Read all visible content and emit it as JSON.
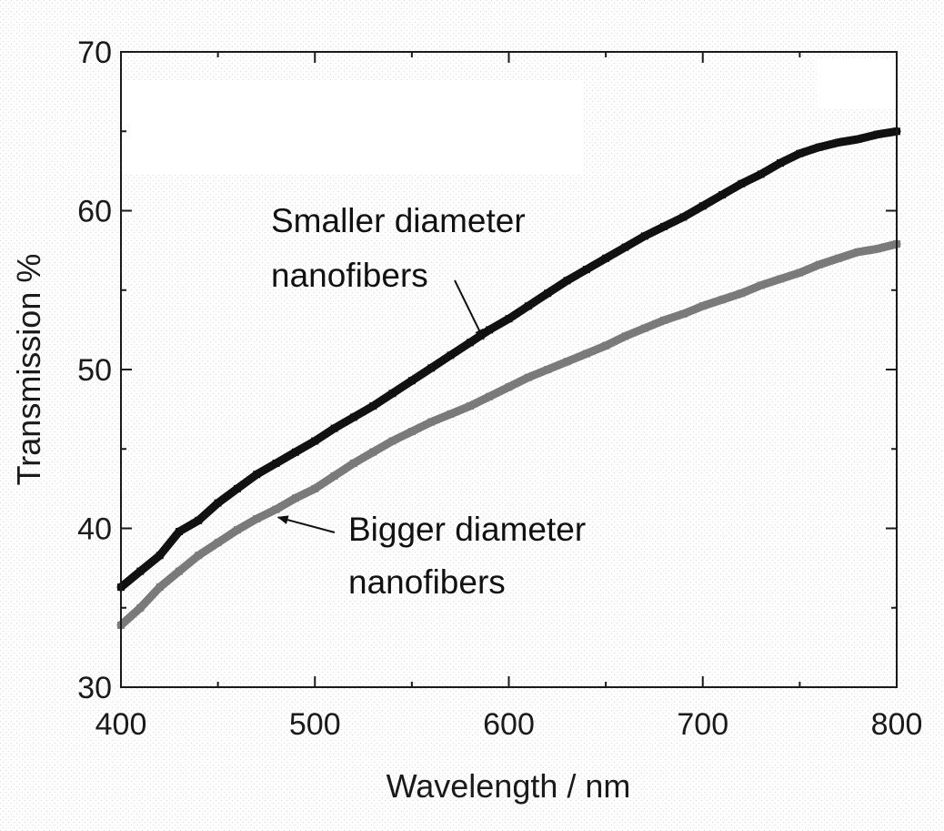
{
  "chart_data": {
    "type": "line",
    "title": "",
    "xlabel": "Wavelength / nm",
    "ylabel": "Transmission %",
    "xlim": [
      400,
      800
    ],
    "ylim": [
      30,
      70
    ],
    "xticks": [
      400,
      500,
      600,
      700,
      800
    ],
    "yticks": [
      30,
      40,
      50,
      60,
      70
    ],
    "grid": false,
    "series": [
      {
        "color": "#111111",
        "x": [
          400,
          410,
          420,
          430,
          440,
          450,
          460,
          470,
          480,
          490,
          500,
          510,
          520,
          530,
          540,
          550,
          560,
          570,
          580,
          590,
          600,
          610,
          620,
          630,
          640,
          650,
          660,
          670,
          680,
          690,
          700,
          710,
          720,
          730,
          740,
          750,
          760,
          770,
          780,
          790,
          800
        ],
        "y": [
          36.3,
          37.3,
          38.3,
          39.8,
          40.5,
          41.6,
          42.5,
          43.4,
          44.1,
          44.8,
          45.5,
          46.3,
          47.0,
          47.7,
          48.5,
          49.3,
          50.1,
          50.9,
          51.7,
          52.5,
          53.2,
          54.0,
          54.8,
          55.6,
          56.3,
          57.0,
          57.7,
          58.4,
          59.0,
          59.6,
          60.3,
          61.0,
          61.7,
          62.3,
          63.0,
          63.6,
          64.0,
          64.3,
          64.5,
          64.8,
          65.0
        ]
      },
      {
        "color": "#7a7a7a",
        "x": [
          400,
          410,
          420,
          430,
          440,
          450,
          460,
          470,
          480,
          490,
          500,
          510,
          520,
          530,
          540,
          550,
          560,
          570,
          580,
          590,
          600,
          610,
          620,
          630,
          640,
          650,
          660,
          670,
          680,
          690,
          700,
          710,
          720,
          730,
          740,
          750,
          760,
          770,
          780,
          790,
          800
        ],
        "y": [
          33.9,
          35.0,
          36.3,
          37.3,
          38.3,
          39.1,
          39.9,
          40.6,
          41.2,
          41.9,
          42.5,
          43.3,
          44.1,
          44.8,
          45.5,
          46.1,
          46.7,
          47.2,
          47.7,
          48.3,
          48.9,
          49.5,
          50.0,
          50.5,
          51.0,
          51.5,
          52.1,
          52.6,
          53.1,
          53.5,
          54.0,
          54.4,
          54.8,
          55.3,
          55.7,
          56.1,
          56.6,
          57.0,
          57.4,
          57.6,
          57.9
        ]
      }
    ],
    "annotations": [
      {
        "lines": [
          "Smaller diameter",
          "nanofibers"
        ],
        "arrow_to": [
          587,
          51.9
        ]
      },
      {
        "lines": [
          "Bigger diameter",
          "nanofibers"
        ],
        "arrow_to": [
          481,
          40.7
        ]
      }
    ]
  }
}
